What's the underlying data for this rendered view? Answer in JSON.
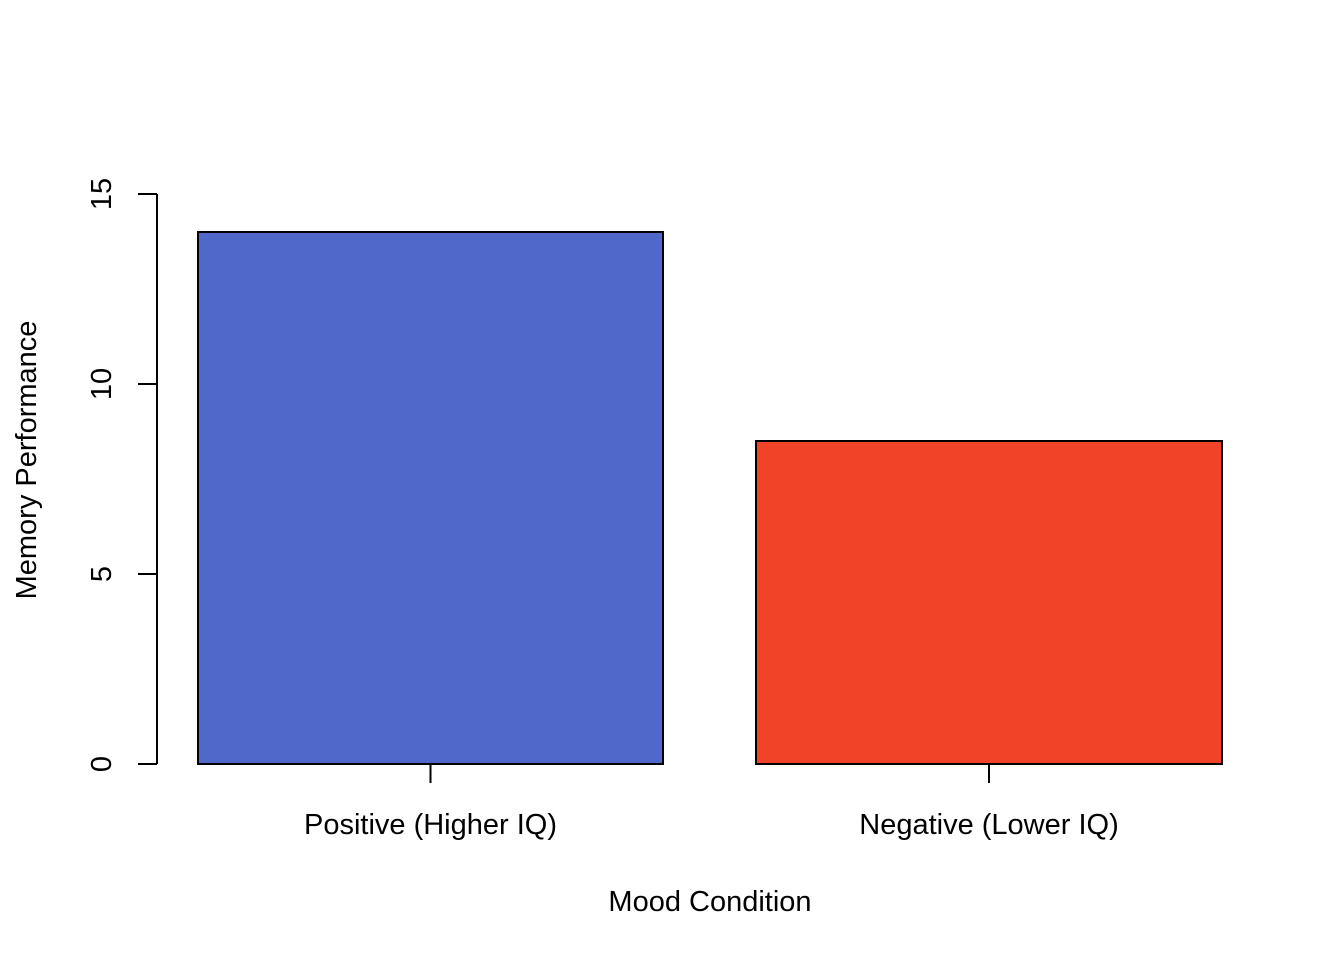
{
  "chart_data": {
    "type": "bar",
    "categories": [
      "Positive (Higher IQ)",
      "Negative (Lower IQ)"
    ],
    "values": [
      14,
      8.5
    ],
    "colors": [
      "#5068C9",
      "#F04327"
    ],
    "xlabel": "Mood Condition",
    "ylabel": "Memory Performance",
    "ylim": [
      0,
      15
    ],
    "yticks": [
      "0",
      "5",
      "10",
      "15"
    ],
    "grid": false,
    "legend": "none"
  }
}
